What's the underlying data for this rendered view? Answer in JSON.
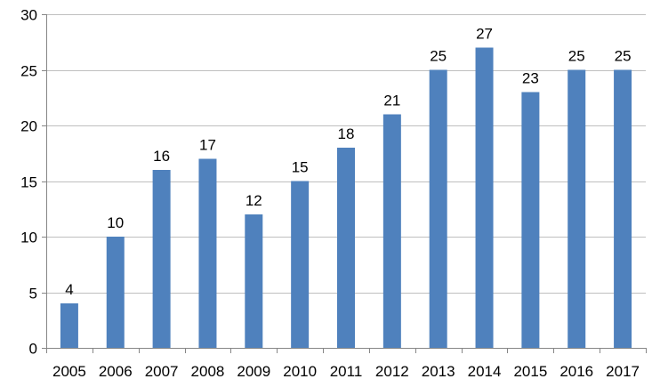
{
  "chart_data": {
    "type": "bar",
    "categories": [
      "2005",
      "2006",
      "2007",
      "2008",
      "2009",
      "2010",
      "2011",
      "2012",
      "2013",
      "2014",
      "2015",
      "2016",
      "2017"
    ],
    "values": [
      4,
      10,
      16,
      17,
      12,
      15,
      18,
      21,
      25,
      27,
      23,
      25,
      25
    ],
    "ylim": [
      0,
      30
    ],
    "yticks": [
      0,
      5,
      10,
      15,
      20,
      25,
      30
    ],
    "grid": true,
    "legend": "none",
    "data_labels": true,
    "bar_color": "#4F81BD",
    "grid_color": "#BFBFBF",
    "axis_color": "#868686"
  }
}
